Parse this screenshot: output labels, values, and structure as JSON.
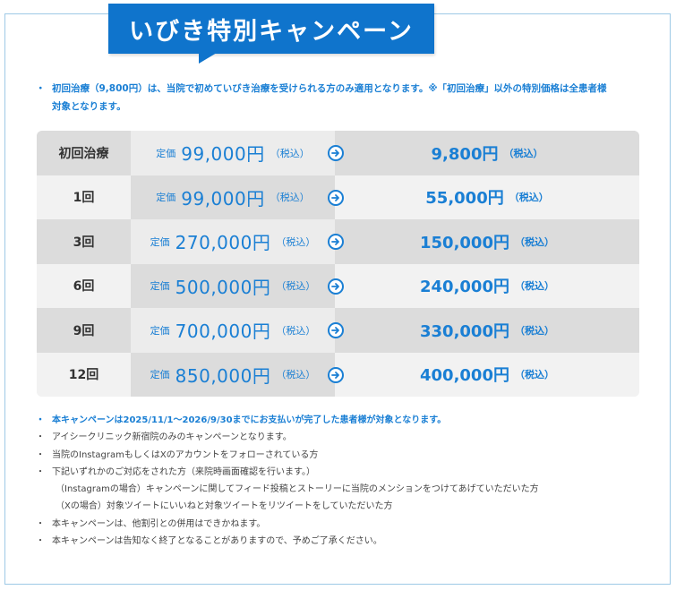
{
  "title": "いびき特別キャンペーン",
  "intro": {
    "bullet": "・",
    "line1": "初回治療（9,800円）は、当院で初めていびき治療を受けられる方のみ適用となります。※「初回治療」以外の特別価格は全患者様",
    "line2": "対象となります。"
  },
  "price_table": {
    "regular_prefix": "定価",
    "tax_label": "（税込）",
    "rows": [
      {
        "label": "初回治療",
        "regular": "99,000円",
        "sale": "9,800円"
      },
      {
        "label": "1回",
        "regular": "99,000円",
        "sale": "55,000円"
      },
      {
        "label": "3回",
        "regular": "270,000円",
        "sale": "150,000円"
      },
      {
        "label": "6回",
        "regular": "500,000円",
        "sale": "240,000円"
      },
      {
        "label": "9回",
        "regular": "700,000円",
        "sale": "330,000円"
      },
      {
        "label": "12回",
        "regular": "850,000円",
        "sale": "400,000円"
      }
    ]
  },
  "notes": [
    {
      "bullet": "・",
      "text": "本キャンペーンは2025/11/1〜2026/9/30までにお支払いが完了した患者様が対象となります。",
      "bold": true
    },
    {
      "bullet": "・",
      "text": "アイシークリニック新宿院のみのキャンペーンとなります。"
    },
    {
      "bullet": "・",
      "text": "当院のInstagramもしくはXのアカウントをフォローされている方"
    },
    {
      "bullet": "・",
      "text": "下記いずれかのご対応をされた方（来院時画面確認を行います。）"
    },
    {
      "bullet": "",
      "text": "（Instagramの場合）キャンペーンに関してフィード投稿とストーリーに当院のメンションをつけてあげていただいた方",
      "sub": true
    },
    {
      "bullet": "",
      "text": "（Xの場合）対象ツイートにいいねと対象ツイートをリツイートをしていただいた方",
      "sub": true
    },
    {
      "bullet": "・",
      "text": "本キャンペーンは、他割引との併用はできかねます。"
    },
    {
      "bullet": "・",
      "text": "本キャンペーンは告知なく終了となることがありますので、予めご了承ください。"
    }
  ],
  "colors": {
    "accent": "#0f74cc",
    "text_blue": "#1a7fd4"
  }
}
